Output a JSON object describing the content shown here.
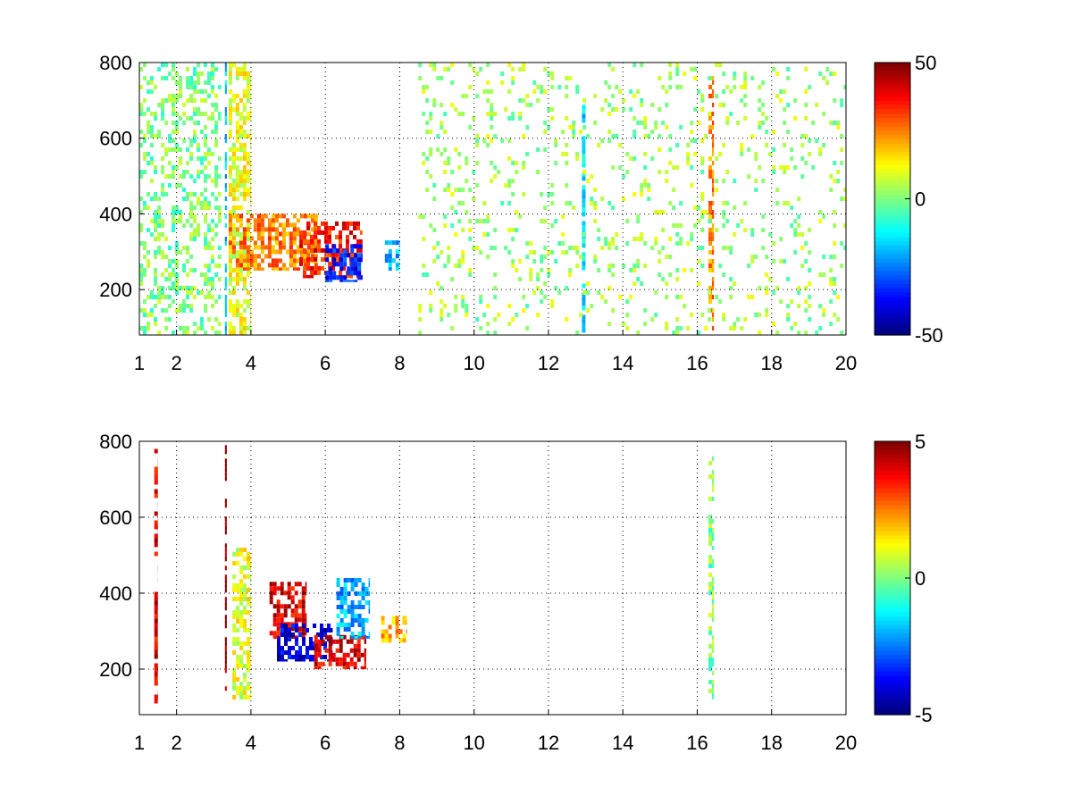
{
  "chart_data": [
    {
      "type": "heatmap",
      "title": "",
      "xlabel": "",
      "ylabel": "",
      "xlim": [
        1,
        20
      ],
      "ylim": [
        80,
        800
      ],
      "x_ticks": [
        1,
        2,
        4,
        6,
        8,
        10,
        12,
        14,
        16,
        18,
        20
      ],
      "x_tick_labels": [
        "1",
        "2",
        "4",
        "6",
        "8",
        "10",
        "12",
        "14",
        "16",
        "18",
        "20"
      ],
      "y_ticks": [
        200,
        400,
        600,
        800
      ],
      "y_tick_labels": [
        "200",
        "400",
        "600",
        "800"
      ],
      "grid": true,
      "colormap": "jet",
      "colorbar": {
        "position": "right",
        "min": -50,
        "max": 50,
        "tick_values": [
          50,
          0,
          -50
        ],
        "tick_labels": [
          "50",
          "0",
          "-50"
        ]
      },
      "features": [
        {
          "x": [
            1.0,
            3.2
          ],
          "y": [
            80,
            800
          ],
          "value": 0,
          "note": "scattered"
        },
        {
          "x": [
            3.3,
            3.35
          ],
          "y": [
            80,
            800
          ],
          "value": -20
        },
        {
          "x": [
            3.4,
            4.0
          ],
          "y": [
            80,
            800
          ],
          "value": 10
        },
        {
          "x": [
            3.4,
            5.8
          ],
          "y": [
            250,
            400
          ],
          "value": 25
        },
        {
          "x": [
            5.3,
            7.0
          ],
          "y": [
            230,
            380
          ],
          "value": 35
        },
        {
          "x": [
            6.0,
            7.0
          ],
          "y": [
            220,
            320
          ],
          "value": -35
        },
        {
          "x": [
            7.6,
            8.0
          ],
          "y": [
            250,
            330
          ],
          "value": -20
        },
        {
          "x": [
            12.9,
            13.0
          ],
          "y": [
            80,
            700
          ],
          "value": -15
        },
        {
          "x": [
            16.3,
            16.45
          ],
          "y": [
            80,
            800
          ],
          "value": 25
        },
        {
          "x": [
            8.5,
            20.0
          ],
          "y": [
            80,
            800
          ],
          "value": 3,
          "note": "sparse"
        }
      ]
    },
    {
      "type": "heatmap",
      "title": "",
      "xlabel": "",
      "ylabel": "",
      "xlim": [
        1,
        20
      ],
      "ylim": [
        80,
        800
      ],
      "x_ticks": [
        1,
        2,
        4,
        6,
        8,
        10,
        12,
        14,
        16,
        18,
        20
      ],
      "x_tick_labels": [
        "1",
        "2",
        "4",
        "6",
        "8",
        "10",
        "12",
        "14",
        "16",
        "18",
        "20"
      ],
      "y_ticks": [
        200,
        400,
        600,
        800
      ],
      "y_tick_labels": [
        "200",
        "400",
        "600",
        "800"
      ],
      "grid": true,
      "colormap": "jet",
      "colorbar": {
        "position": "right",
        "min": -5,
        "max": 5,
        "tick_values": [
          5,
          0,
          -5
        ],
        "tick_labels": [
          "5",
          "0",
          "-5"
        ]
      },
      "features": [
        {
          "x": [
            1.4,
            1.5
          ],
          "y": [
            100,
            780
          ],
          "value": 4
        },
        {
          "x": [
            3.3,
            3.35
          ],
          "y": [
            120,
            790
          ],
          "value": 5
        },
        {
          "x": [
            3.5,
            4.0
          ],
          "y": [
            120,
            520
          ],
          "value": 1
        },
        {
          "x": [
            4.5,
            5.5
          ],
          "y": [
            280,
            430
          ],
          "value": 4
        },
        {
          "x": [
            4.7,
            6.2
          ],
          "y": [
            220,
            320
          ],
          "value": -4
        },
        {
          "x": [
            5.7,
            7.1
          ],
          "y": [
            200,
            290
          ],
          "value": 4
        },
        {
          "x": [
            6.3,
            7.2
          ],
          "y": [
            280,
            440
          ],
          "value": -2
        },
        {
          "x": [
            7.5,
            8.2
          ],
          "y": [
            270,
            340
          ],
          "value": 2
        },
        {
          "x": [
            16.3,
            16.45
          ],
          "y": [
            120,
            760
          ],
          "value": 0
        }
      ]
    }
  ]
}
